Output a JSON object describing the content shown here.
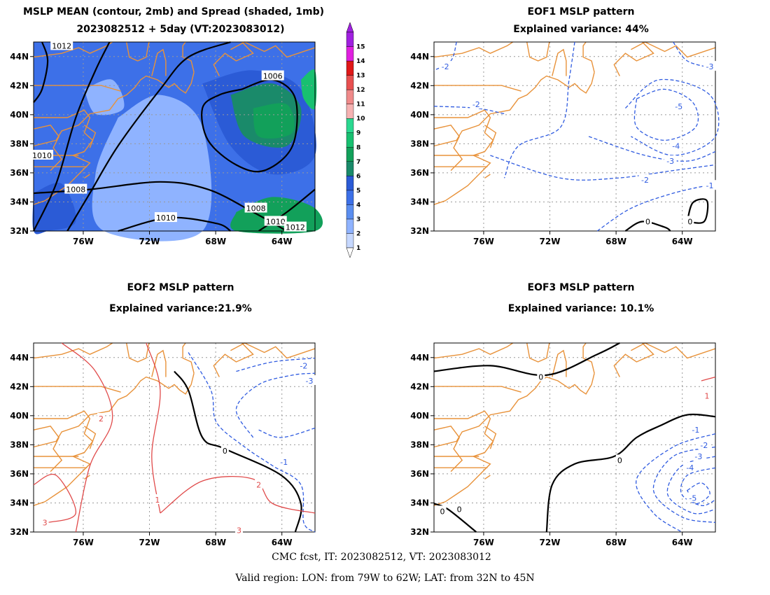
{
  "panels": {
    "p1": {
      "title1": "MSLP MEAN (contour, 2mb) and Spread (shaded, 1mb)",
      "title2": "2023082512 + 5day (VT:2023083012)"
    },
    "p2": {
      "title1": "EOF1 MSLP pattern",
      "title2": "Explained variance: 44%"
    },
    "p3": {
      "title1": "EOF2 MSLP pattern",
      "title2": "Explained variance:21.9%"
    },
    "p4": {
      "title1": "EOF3 MSLP pattern",
      "title2": "Explained variance: 10.1%"
    }
  },
  "footer": {
    "line1": "CMC fcst, IT: 2023082512, VT: 2023083012",
    "line2": "Valid region: LON: from 79W to 62W; LAT: from 32N to 45N"
  },
  "colors": {
    "coast": "#e8923a",
    "neg_contour": "#2f5be0",
    "pos_contour": "#e04a4a",
    "zero_contour": "#000000",
    "shade": [
      "#c6d8ff",
      "#8fb3ff",
      "#5b8ef0",
      "#3d70e8",
      "#2b5bd6",
      "#1a8a6a",
      "#12a05a",
      "#18c070",
      "#2ad890",
      "#f6b2b2",
      "#f08a8a",
      "#e85050",
      "#e01818",
      "#e020e0",
      "#a020e0"
    ]
  },
  "chart_data": [
    {
      "type": "heatmap",
      "title": "MSLP MEAN (contour, 2mb) and Spread (shaded, 1mb)",
      "subtitle": "2023082512 + 5day (VT:2023083012)",
      "xlim": [
        -79,
        -62
      ],
      "ylim": [
        32,
        45
      ],
      "xticks": [
        "76W",
        "72W",
        "68W",
        "64W"
      ],
      "yticks": [
        "32N",
        "34N",
        "36N",
        "38N",
        "40N",
        "42N",
        "44N"
      ],
      "colorbar": {
        "levels": [
          1,
          2,
          3,
          4,
          5,
          6,
          7,
          8,
          9,
          10,
          11,
          12,
          13,
          14,
          15
        ]
      },
      "contour_labels": [
        "1012",
        "1006",
        "1010",
        "1008",
        "1008",
        "1010",
        "1010",
        "1012"
      ],
      "contour_label_values": [
        1012,
        1006,
        1010,
        1008,
        1008,
        1010,
        1010,
        1012
      ],
      "grid": true
    },
    {
      "type": "line",
      "title": "EOF1 MSLP pattern",
      "subtitle": "Explained variance: 44%",
      "xlim": [
        -79,
        -62
      ],
      "ylim": [
        32,
        45
      ],
      "xticks": [
        "76W",
        "72W",
        "68W",
        "64W"
      ],
      "yticks": [
        "32N",
        "34N",
        "36N",
        "38N",
        "40N",
        "42N",
        "44N"
      ],
      "contour_labels": [
        "-2",
        "-2",
        "-3",
        "-5",
        "-4",
        "-3",
        "-2",
        "-1",
        "0",
        "0"
      ],
      "contour_label_values": [
        -2,
        -2,
        -3,
        -5,
        -4,
        -3,
        -2,
        -1,
        0,
        0
      ],
      "grid": true
    },
    {
      "type": "line",
      "title": "EOF2 MSLP pattern",
      "subtitle": "Explained variance:21.9%",
      "xlim": [
        -79,
        -62
      ],
      "ylim": [
        32,
        45
      ],
      "xticks": [
        "76W",
        "72W",
        "68W",
        "64W"
      ],
      "yticks": [
        "32N",
        "34N",
        "36N",
        "38N",
        "40N",
        "42N",
        "44N"
      ],
      "contour_labels": [
        "-2",
        "-3",
        "2",
        "0",
        "-1",
        "2",
        "1",
        "3",
        "3"
      ],
      "contour_label_values": [
        -2,
        -3,
        2,
        0,
        -1,
        2,
        1,
        3,
        3
      ],
      "grid": true
    },
    {
      "type": "line",
      "title": "EOF3 MSLP pattern",
      "subtitle": "Explained variance: 10.1%",
      "xlim": [
        -79,
        -62
      ],
      "ylim": [
        32,
        45
      ],
      "xticks": [
        "76W",
        "72W",
        "68W",
        "64W"
      ],
      "yticks": [
        "32N",
        "34N",
        "36N",
        "38N",
        "40N",
        "42N",
        "44N"
      ],
      "contour_labels": [
        "0",
        "0",
        "1",
        "-1",
        "-2",
        "-3",
        "-4",
        "-5",
        "0",
        "0"
      ],
      "contour_label_values": [
        0,
        0,
        1,
        -1,
        -2,
        -3,
        -4,
        -5,
        0,
        0
      ],
      "grid": true
    }
  ]
}
